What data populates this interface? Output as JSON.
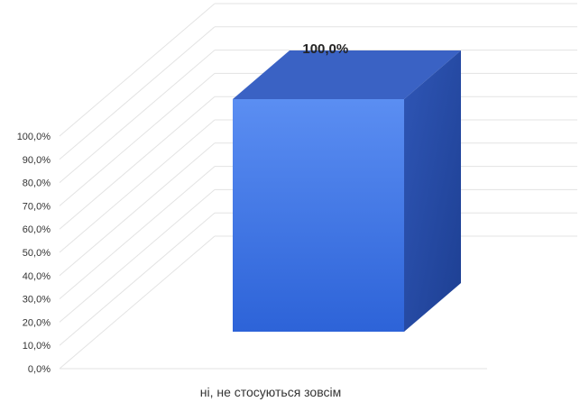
{
  "chart_data": {
    "type": "bar",
    "categories": [
      "ні, не стосуються зовсім"
    ],
    "values": [
      100.0
    ],
    "data_labels": [
      "100,0%"
    ],
    "ylim": [
      0,
      100
    ],
    "y_ticks": [
      "0,0%",
      "10,0%",
      "20,0%",
      "30,0%",
      "40,0%",
      "50,0%",
      "60,0%",
      "70,0%",
      "80,0%",
      "90,0%",
      "100,0%"
    ],
    "grid": true,
    "legend": "none",
    "style": "3d-column",
    "colors": {
      "bar_front_top": "#5b8ef2",
      "bar_front_bottom": "#2d63d8",
      "bar_top": "#3a62c4",
      "bar_side": "#24479e",
      "grid": "#e3e3e3",
      "text": "#333333"
    }
  }
}
